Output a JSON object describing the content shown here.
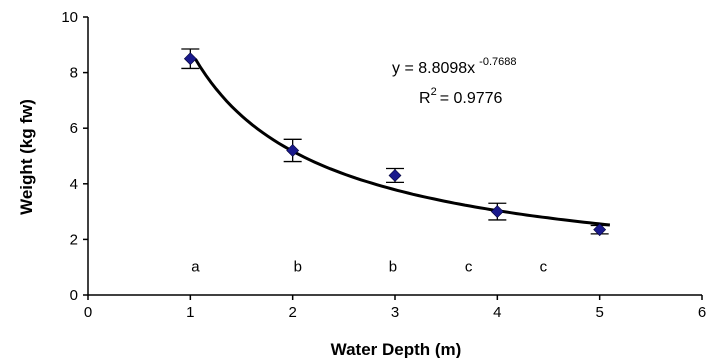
{
  "chart_data": {
    "type": "scatter",
    "xlabel": "Water Depth (m)",
    "ylabel": "Weight (kg fw)",
    "xlim": [
      0,
      6
    ],
    "ylim": [
      0,
      10
    ],
    "xticks": [
      "0",
      "1",
      "2",
      "3",
      "4",
      "5",
      "6"
    ],
    "yticks": [
      "0",
      "2",
      "4",
      "6",
      "8",
      "10"
    ],
    "grid": false,
    "marker_color": "#1a1a8c",
    "series": [
      {
        "x": [
          1,
          2,
          3,
          4,
          5
        ],
        "y": [
          8.5,
          5.2,
          4.3,
          3.0,
          2.35
        ],
        "error": [
          0.35,
          0.4,
          0.25,
          0.3,
          0.15
        ]
      }
    ],
    "trendline": {
      "type": "power",
      "a": 8.8098,
      "b": -0.7688,
      "x_range": [
        1.05,
        5.1
      ]
    },
    "equation": {
      "base": "y = 8.8098x",
      "exponent": "-0.7688"
    },
    "r_squared": {
      "label": "R",
      "power": "2",
      "value": "= 0.9776"
    },
    "group_letters": [
      {
        "x": 1.05,
        "label": "a"
      },
      {
        "x": 2.05,
        "label": "b"
      },
      {
        "x": 2.98,
        "label": "b"
      },
      {
        "x": 3.72,
        "label": "c"
      },
      {
        "x": 4.45,
        "label": "c"
      }
    ],
    "group_letter_y": 0.85
  }
}
